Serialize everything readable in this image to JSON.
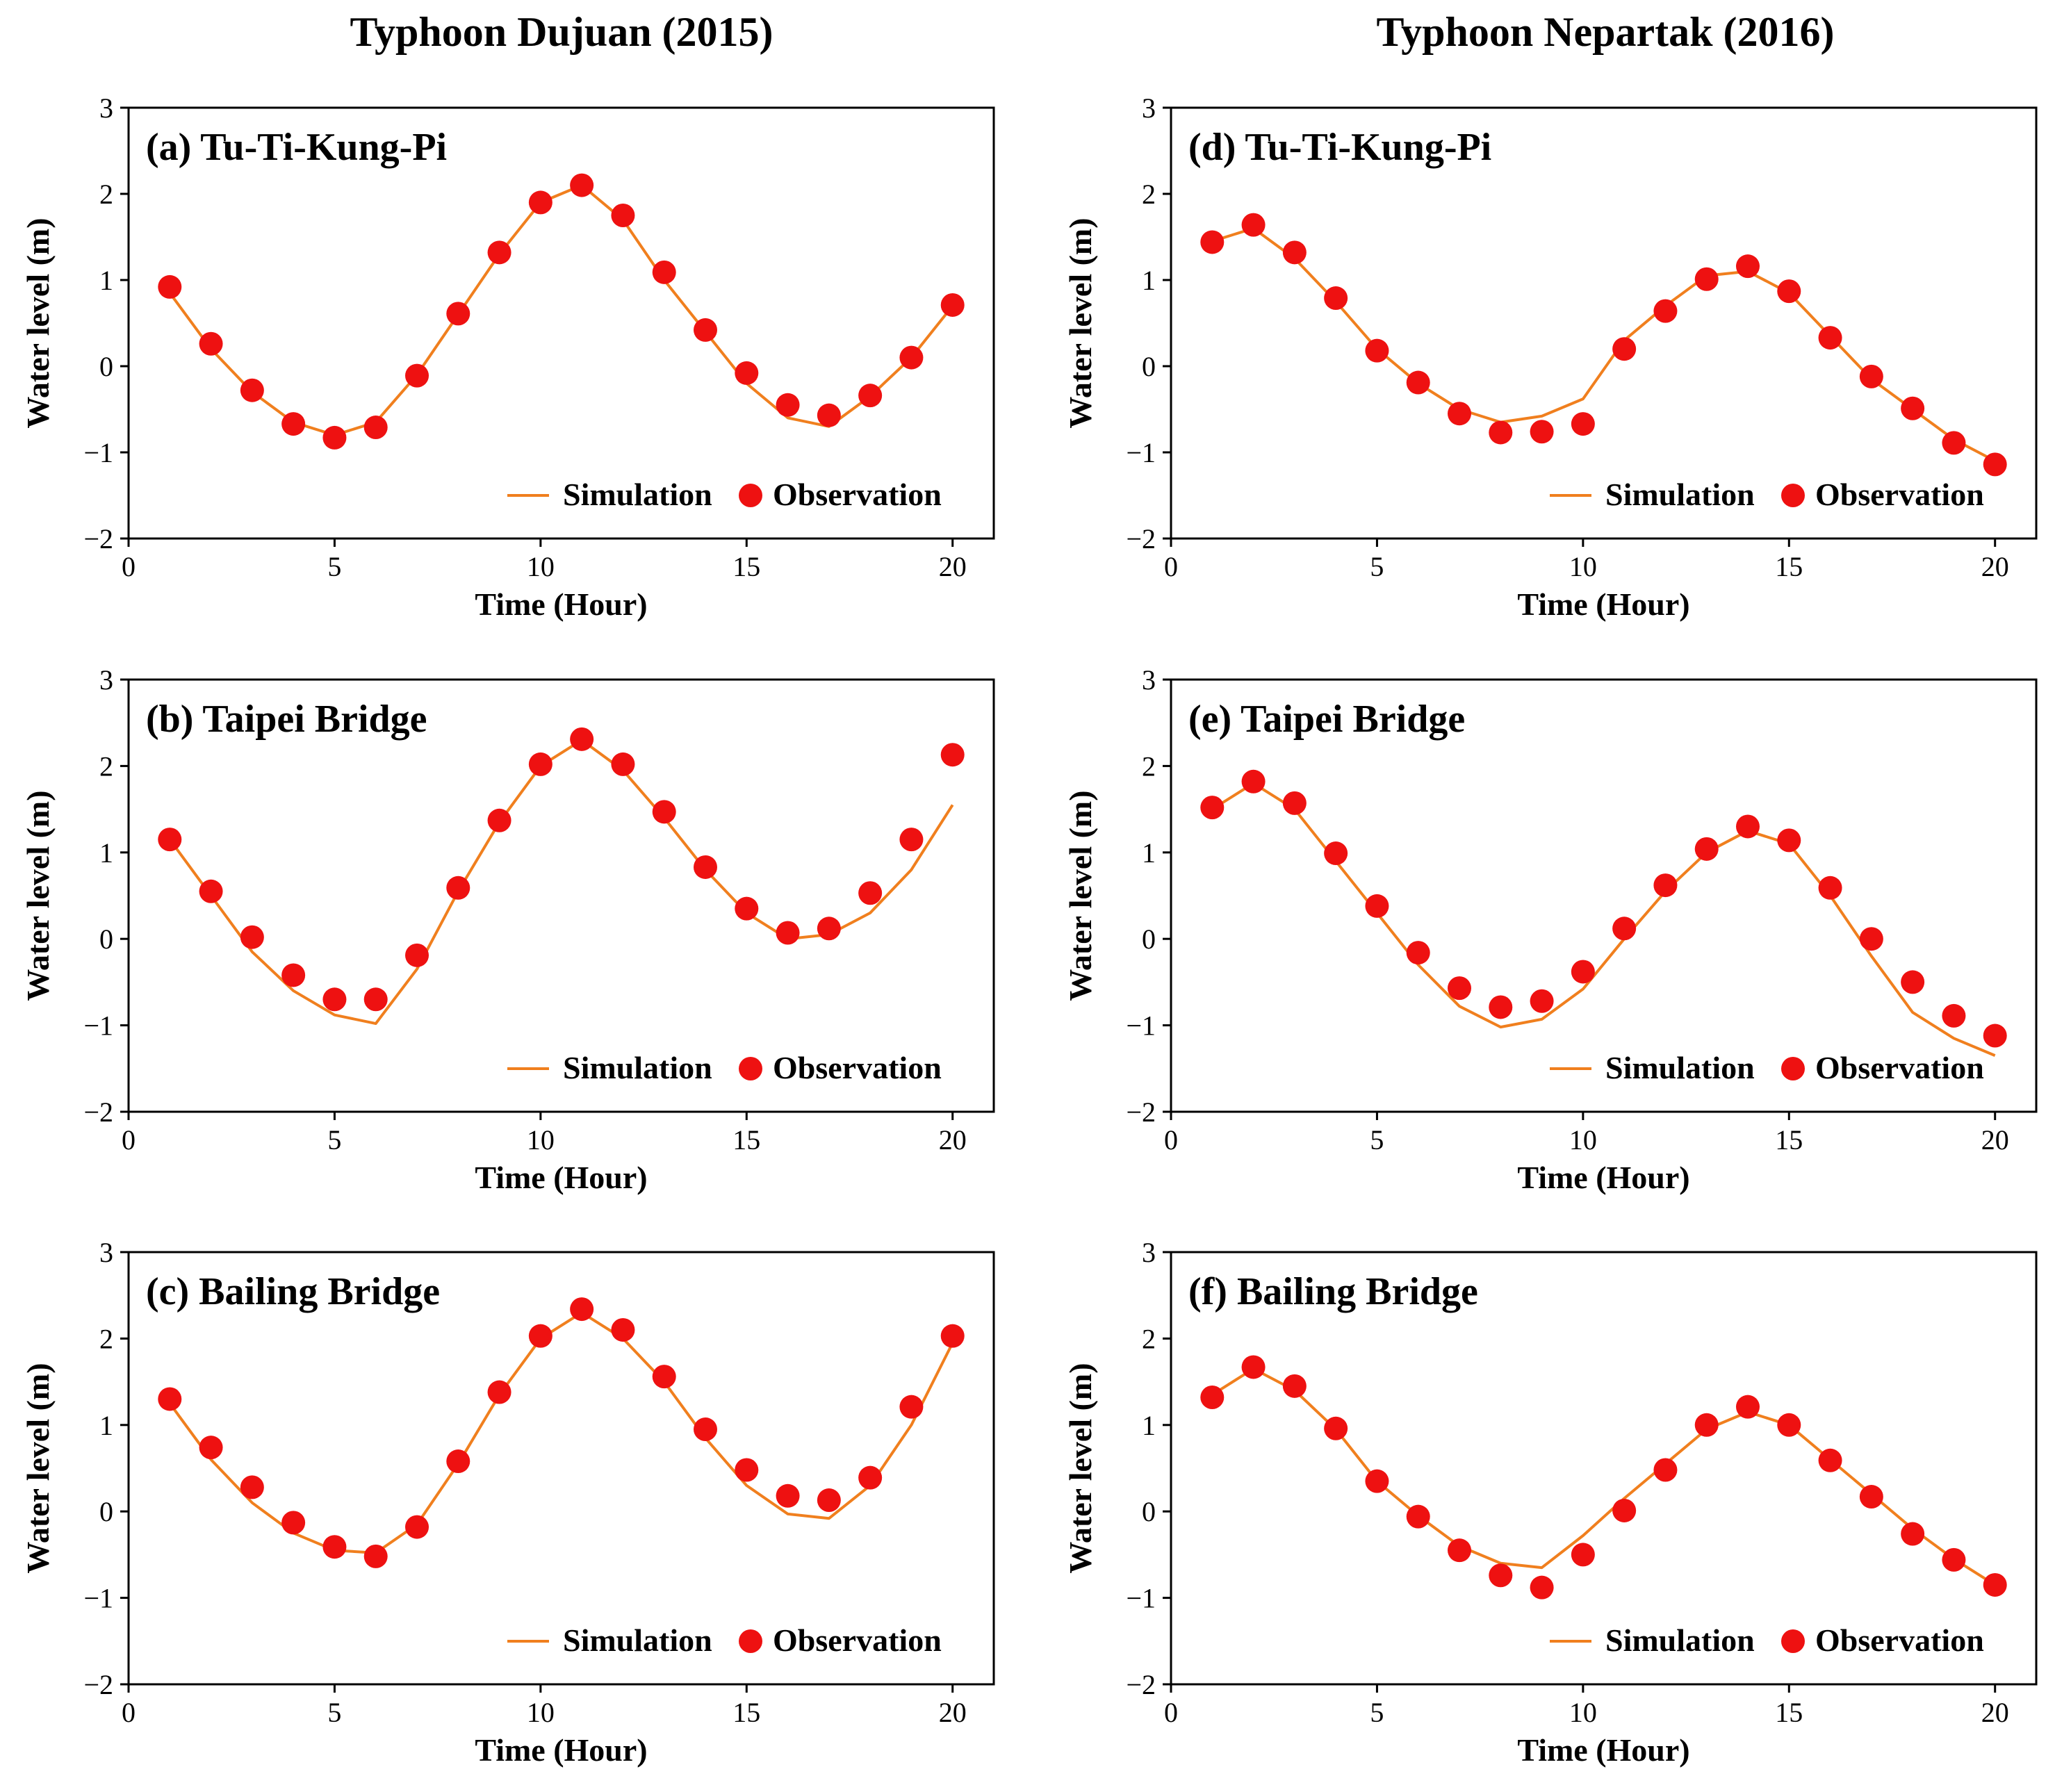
{
  "figure": {
    "column_titles": [
      "Typhoon Dujuan (2015)",
      "Typhoon Nepartak (2016)"
    ]
  },
  "colors": {
    "simulation": "#F07F1E",
    "observation": "#EE1111"
  },
  "chart_data": [
    {
      "type": "line+scatter",
      "panel": "a",
      "title": "(a) Tu-Ti-Kung-Pi",
      "xlabel": "Time (Hour)",
      "ylabel": "Water level (m)",
      "xlim": [
        0,
        21
      ],
      "ylim": [
        -2,
        3
      ],
      "xticks": [
        0,
        5,
        10,
        15,
        20
      ],
      "yticks": [
        -2,
        -1,
        0,
        1,
        2,
        3
      ],
      "legend": {
        "position": "lower-right",
        "entries": [
          "Simulation",
          "Observation"
        ]
      },
      "x": [
        1,
        2,
        3,
        4,
        5,
        6,
        7,
        8,
        9,
        10,
        11,
        12,
        13,
        14,
        15,
        16,
        17,
        18,
        19,
        20
      ],
      "series": [
        {
          "name": "Simulation",
          "kind": "line",
          "values": [
            0.85,
            0.2,
            -0.3,
            -0.65,
            -0.8,
            -0.65,
            -0.1,
            0.6,
            1.3,
            1.9,
            2.1,
            1.7,
            1.0,
            0.4,
            -0.2,
            -0.6,
            -0.7,
            -0.35,
            0.1,
            0.7
          ]
        },
        {
          "name": "Observation",
          "kind": "scatter",
          "values": [
            0.92,
            0.26,
            -0.28,
            -0.67,
            -0.83,
            -0.71,
            -0.11,
            0.61,
            1.32,
            1.9,
            2.1,
            1.75,
            1.09,
            0.42,
            -0.08,
            -0.45,
            -0.57,
            -0.34,
            0.1,
            0.71
          ]
        }
      ]
    },
    {
      "type": "line+scatter",
      "panel": "b",
      "title": "(b) Taipei Bridge",
      "xlabel": "Time (Hour)",
      "ylabel": "Water level (m)",
      "xlim": [
        0,
        21
      ],
      "ylim": [
        -2,
        3
      ],
      "xticks": [
        0,
        5,
        10,
        15,
        20
      ],
      "yticks": [
        -2,
        -1,
        0,
        1,
        2,
        3
      ],
      "legend": {
        "position": "lower-right",
        "entries": [
          "Simulation",
          "Observation"
        ]
      },
      "x": [
        1,
        2,
        3,
        4,
        5,
        6,
        7,
        8,
        9,
        10,
        11,
        12,
        13,
        14,
        15,
        16,
        17,
        18,
        19,
        20
      ],
      "series": [
        {
          "name": "Simulation",
          "kind": "line",
          "values": [
            1.15,
            0.5,
            -0.15,
            -0.6,
            -0.88,
            -0.98,
            -0.35,
            0.55,
            1.35,
            2.0,
            2.3,
            1.95,
            1.4,
            0.8,
            0.3,
            0.0,
            0.05,
            0.3,
            0.8,
            1.55
          ]
        },
        {
          "name": "Observation",
          "kind": "scatter",
          "values": [
            1.15,
            0.55,
            0.02,
            -0.42,
            -0.7,
            -0.7,
            -0.19,
            0.59,
            1.37,
            2.02,
            2.31,
            2.02,
            1.47,
            0.83,
            0.35,
            0.07,
            0.12,
            0.53,
            1.15,
            2.13
          ]
        }
      ]
    },
    {
      "type": "line+scatter",
      "panel": "c",
      "title": "(c) Bailing Bridge",
      "xlabel": "Time (Hour)",
      "ylabel": "Water level (m)",
      "xlim": [
        0,
        21
      ],
      "ylim": [
        -2,
        3
      ],
      "xticks": [
        0,
        5,
        10,
        15,
        20
      ],
      "yticks": [
        -2,
        -1,
        0,
        1,
        2,
        3
      ],
      "legend": {
        "position": "lower-right",
        "entries": [
          "Simulation",
          "Observation"
        ]
      },
      "x": [
        1,
        2,
        3,
        4,
        5,
        6,
        7,
        8,
        9,
        10,
        11,
        12,
        13,
        14,
        15,
        16,
        17,
        18,
        19,
        20
      ],
      "series": [
        {
          "name": "Simulation",
          "kind": "line",
          "values": [
            1.25,
            0.6,
            0.1,
            -0.25,
            -0.45,
            -0.48,
            -0.15,
            0.55,
            1.35,
            2.0,
            2.3,
            2.0,
            1.5,
            0.85,
            0.3,
            -0.03,
            -0.08,
            0.3,
            1.0,
            1.95
          ]
        },
        {
          "name": "Observation",
          "kind": "scatter",
          "values": [
            1.3,
            0.74,
            0.28,
            -0.13,
            -0.41,
            -0.52,
            -0.18,
            0.58,
            1.38,
            2.03,
            2.34,
            2.1,
            1.56,
            0.95,
            0.48,
            0.18,
            0.13,
            0.39,
            1.21,
            2.03
          ]
        }
      ]
    },
    {
      "type": "line+scatter",
      "panel": "d",
      "title": "(d) Tu-Ti-Kung-Pi",
      "xlabel": "Time (Hour)",
      "ylabel": "Water level (m)",
      "xlim": [
        0,
        21
      ],
      "ylim": [
        -2,
        3
      ],
      "xticks": [
        0,
        5,
        10,
        15,
        20
      ],
      "yticks": [
        -2,
        -1,
        0,
        1,
        2,
        3
      ],
      "legend": {
        "position": "lower-right",
        "entries": [
          "Simulation",
          "Observation"
        ]
      },
      "x": [
        1,
        2,
        3,
        4,
        5,
        6,
        7,
        8,
        9,
        10,
        11,
        12,
        13,
        14,
        15,
        16,
        17,
        18,
        19,
        20
      ],
      "series": [
        {
          "name": "Simulation",
          "kind": "line",
          "values": [
            1.45,
            1.6,
            1.25,
            0.75,
            0.2,
            -0.2,
            -0.5,
            -0.65,
            -0.58,
            -0.38,
            0.3,
            0.7,
            1.05,
            1.1,
            0.85,
            0.35,
            -0.15,
            -0.5,
            -0.85,
            -1.1
          ]
        },
        {
          "name": "Observation",
          "kind": "scatter",
          "values": [
            1.44,
            1.64,
            1.32,
            0.79,
            0.18,
            -0.19,
            -0.55,
            -0.77,
            -0.76,
            -0.67,
            0.2,
            0.64,
            1.01,
            1.16,
            0.87,
            0.33,
            -0.12,
            -0.49,
            -0.89,
            -1.14
          ]
        }
      ]
    },
    {
      "type": "line+scatter",
      "panel": "e",
      "title": "(e) Taipei Bridge",
      "xlabel": "Time (Hour)",
      "ylabel": "Water level (m)",
      "xlim": [
        0,
        21
      ],
      "ylim": [
        -2,
        3
      ],
      "xticks": [
        0,
        5,
        10,
        15,
        20
      ],
      "yticks": [
        -2,
        -1,
        0,
        1,
        2,
        3
      ],
      "legend": {
        "position": "lower-right",
        "entries": [
          "Simulation",
          "Observation"
        ]
      },
      "x": [
        1,
        2,
        3,
        4,
        5,
        6,
        7,
        8,
        9,
        10,
        11,
        12,
        13,
        14,
        15,
        16,
        17,
        18,
        19,
        20
      ],
      "series": [
        {
          "name": "Simulation",
          "kind": "line",
          "values": [
            1.5,
            1.8,
            1.5,
            0.9,
            0.3,
            -0.3,
            -0.78,
            -1.02,
            -0.93,
            -0.58,
            0.0,
            0.55,
            1.0,
            1.25,
            1.1,
            0.5,
            -0.2,
            -0.85,
            -1.15,
            -1.35
          ]
        },
        {
          "name": "Observation",
          "kind": "scatter",
          "values": [
            1.52,
            1.82,
            1.57,
            0.99,
            0.38,
            -0.16,
            -0.57,
            -0.79,
            -0.72,
            -0.38,
            0.12,
            0.62,
            1.04,
            1.3,
            1.14,
            0.59,
            0.0,
            -0.5,
            -0.89,
            -1.12
          ]
        }
      ]
    },
    {
      "type": "line+scatter",
      "panel": "f",
      "title": "(f) Bailing Bridge",
      "xlabel": "Time (Hour)",
      "ylabel": "Water level (m)",
      "xlim": [
        0,
        21
      ],
      "ylim": [
        -2,
        3
      ],
      "xticks": [
        0,
        5,
        10,
        15,
        20
      ],
      "yticks": [
        -2,
        -1,
        0,
        1,
        2,
        3
      ],
      "legend": {
        "position": "lower-right",
        "entries": [
          "Simulation",
          "Observation"
        ]
      },
      "x": [
        1,
        2,
        3,
        4,
        5,
        6,
        7,
        8,
        9,
        10,
        11,
        12,
        13,
        14,
        15,
        16,
        17,
        18,
        19,
        20
      ],
      "series": [
        {
          "name": "Simulation",
          "kind": "line",
          "values": [
            1.35,
            1.65,
            1.4,
            0.95,
            0.35,
            -0.05,
            -0.4,
            -0.6,
            -0.65,
            -0.28,
            0.15,
            0.55,
            0.95,
            1.15,
            1.0,
            0.6,
            0.2,
            -0.2,
            -0.55,
            -0.85
          ]
        },
        {
          "name": "Observation",
          "kind": "scatter",
          "values": [
            1.32,
            1.67,
            1.45,
            0.96,
            0.35,
            -0.06,
            -0.45,
            -0.74,
            -0.88,
            -0.5,
            0.01,
            0.48,
            1.0,
            1.21,
            1.0,
            0.59,
            0.17,
            -0.26,
            -0.56,
            -0.85
          ]
        }
      ]
    }
  ]
}
